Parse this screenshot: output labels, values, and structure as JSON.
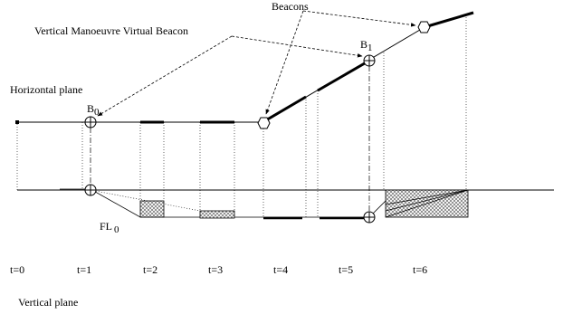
{
  "labels": {
    "beacons": "Beacons",
    "vmvb": "Vertical Manoeuvre Virtual Beacon",
    "horizontal_plane": "Horizontal plane",
    "vertical_plane": "Vertical plane",
    "b0_main": "B",
    "b0_sub": "0",
    "b1_main": "B",
    "b1_sub": "1",
    "fl0_main": "FL",
    "fl0_sub": "0"
  },
  "time_labels": [
    "t=0",
    "t=1",
    "t=2",
    "t=3",
    "t=4",
    "t=5",
    "t=6"
  ]
}
